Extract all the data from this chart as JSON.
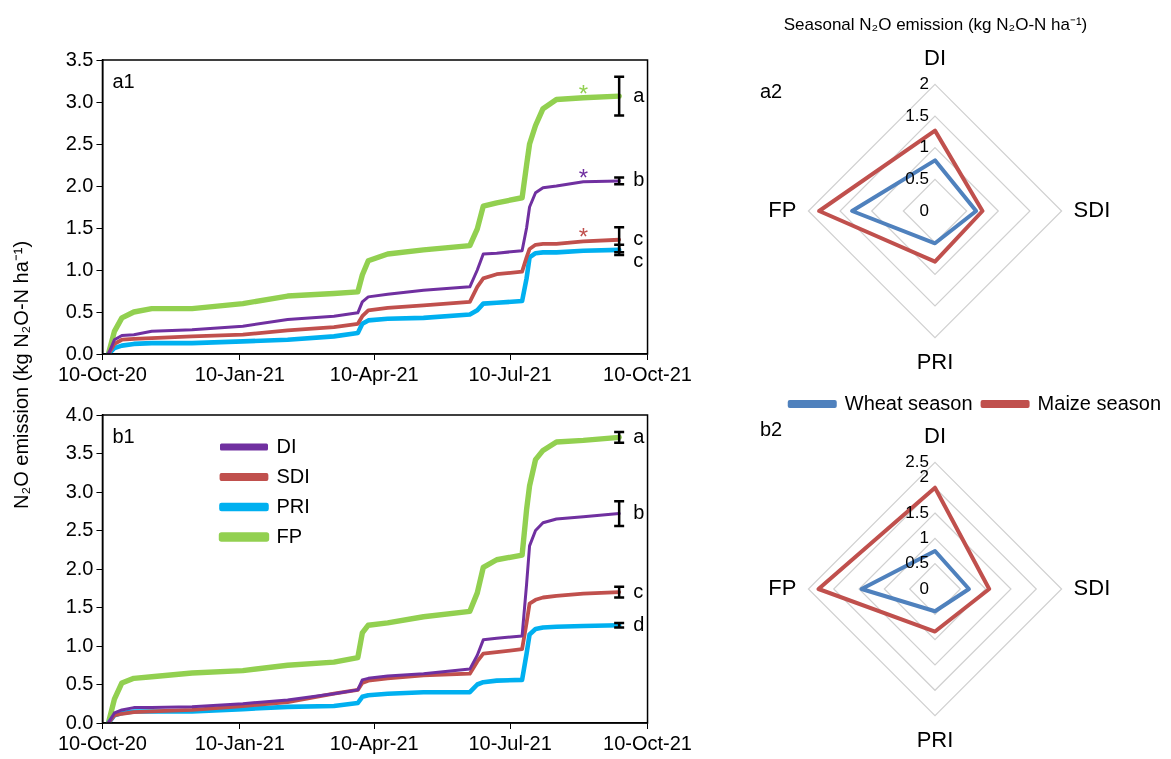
{
  "chart_data": [
    {
      "type": "line",
      "ylabel": "N₂O emission (kg N₂O-N ha⁻¹)",
      "x": [
        "2020-10-14",
        "2020-10-18",
        "2020-10-23",
        "2020-10-31",
        "2020-11-12",
        "2020-12-09",
        "2021-01-12",
        "2021-02-11",
        "2021-03-14",
        "2021-03-30",
        "2021-04-02",
        "2021-04-06",
        "2021-04-19",
        "2021-05-13",
        "2021-06-13",
        "2021-06-18",
        "2021-06-22",
        "2021-07-01",
        "2021-07-18",
        "2021-07-21",
        "2021-07-23",
        "2021-07-27",
        "2021-08-01",
        "2021-08-10",
        "2021-08-28",
        "2021-09-21"
      ],
      "series": [
        {
          "color": "#7030a0",
          "values": [
            0,
            0.17,
            0.22,
            0.23,
            0.27,
            0.29,
            0.33,
            0.41,
            0.45,
            0.49,
            0.62,
            0.68,
            0.71,
            0.76,
            0.8,
            1.0,
            1.19,
            1.2,
            1.23,
            1.5,
            1.75,
            1.92,
            1.98,
            2.0,
            2.05,
            2.06
          ],
          "errors": [
            null,
            null,
            null,
            null,
            null,
            null,
            null,
            null,
            null,
            null,
            null,
            null,
            null,
            null,
            null,
            null,
            null,
            null,
            null,
            null,
            null,
            null,
            null,
            null,
            null,
            0.04
          ]
        },
        {
          "color": "#c0504d",
          "values": [
            0,
            0.12,
            0.17,
            0.18,
            0.19,
            0.21,
            0.23,
            0.28,
            0.32,
            0.36,
            0.45,
            0.52,
            0.55,
            0.58,
            0.62,
            0.8,
            0.9,
            0.95,
            0.98,
            1.15,
            1.25,
            1.3,
            1.31,
            1.31,
            1.34,
            1.36
          ],
          "errors": [
            null,
            null,
            null,
            null,
            null,
            null,
            null,
            null,
            null,
            null,
            null,
            null,
            null,
            null,
            null,
            null,
            null,
            null,
            null,
            null,
            null,
            null,
            null,
            null,
            null,
            0.15
          ]
        },
        {
          "color": "#00b0f0",
          "values": [
            0,
            0.07,
            0.1,
            0.12,
            0.13,
            0.13,
            0.15,
            0.17,
            0.21,
            0.25,
            0.36,
            0.4,
            0.42,
            0.43,
            0.47,
            0.52,
            0.6,
            0.61,
            0.63,
            0.9,
            1.15,
            1.2,
            1.21,
            1.21,
            1.23,
            1.24
          ],
          "errors": [
            null,
            null,
            null,
            null,
            null,
            null,
            null,
            null,
            null,
            null,
            null,
            null,
            null,
            null,
            null,
            null,
            null,
            null,
            null,
            null,
            null,
            null,
            null,
            null,
            null,
            0.06
          ]
        },
        {
          "color": "#92d050",
          "values": [
            0,
            0.27,
            0.43,
            0.5,
            0.54,
            0.54,
            0.6,
            0.69,
            0.72,
            0.74,
            0.94,
            1.11,
            1.19,
            1.24,
            1.29,
            1.49,
            1.76,
            1.8,
            1.86,
            2.25,
            2.5,
            2.72,
            2.92,
            3.03,
            3.05,
            3.07
          ],
          "errors": [
            null,
            null,
            null,
            null,
            null,
            null,
            null,
            null,
            null,
            null,
            null,
            null,
            null,
            null,
            null,
            null,
            null,
            null,
            null,
            null,
            null,
            null,
            null,
            null,
            null,
            0.23
          ]
        }
      ],
      "xlim": [
        "2020-10-10",
        "2021-10-10"
      ],
      "xticks": [
        {
          "value": "2020-10-10",
          "label": "10-Oct-20"
        },
        {
          "value": "2021-01-10",
          "label": "10-Jan-21"
        },
        {
          "value": "2021-04-10",
          "label": "10-Apr-21"
        },
        {
          "value": "2021-07-10",
          "label": "10-Jul-21"
        },
        {
          "value": "2021-10-10",
          "label": "10-Oct-21"
        }
      ],
      "ylim": [
        0,
        3.5
      ],
      "yticks": [
        {
          "value": 0,
          "label": "0.0"
        },
        0.5,
        {
          "value": 1,
          "label": "1.0"
        },
        1.5,
        {
          "value": 2,
          "label": "2.0"
        },
        2.5,
        {
          "value": 3,
          "label": "3.0"
        },
        3.5
      ],
      "annotations": [
        "a1",
        {
          "text": "*",
          "x": "2021-08-28",
          "y": 3.05
        },
        {
          "text": "*",
          "x": "2021-08-28",
          "y": 2.05
        },
        {
          "text": "*",
          "x": "2021-08-28",
          "y": 1.34
        },
        {
          "text": "a",
          "x": "2021-09-21",
          "y": 3.07
        },
        {
          "text": "b",
          "x": "2021-09-21",
          "y": 2.06
        },
        {
          "text": "c",
          "x": "2021-09-21",
          "y": 1.36
        },
        {
          "text": "c",
          "x": "2021-09-21",
          "y": 1.24
        }
      ]
    },
    {
      "type": "radar",
      "title": "Seasonal N₂O emission (kg N₂O-N ha⁻¹)",
      "categories": [
        "DI",
        "SDI",
        "PRI",
        "FP"
      ],
      "series": [
        {
          "color": "#4f81bd",
          "values": [
            0.8,
            0.65,
            0.51,
            1.31
          ]
        },
        {
          "color": "#c0504d",
          "values": [
            1.27,
            0.75,
            0.8,
            1.83
          ]
        }
      ],
      "ylim": [
        0,
        2
      ],
      "yticks": [
        0,
        0.5,
        1,
        1.5,
        2
      ],
      "grid": true,
      "annotations": [
        "a2"
      ]
    },
    {
      "type": "line",
      "x": [
        "2020-10-14",
        "2020-10-18",
        "2020-10-23",
        "2020-10-31",
        "2020-11-12",
        "2020-12-09",
        "2021-01-12",
        "2021-02-11",
        "2021-03-14",
        "2021-03-30",
        "2021-04-02",
        "2021-04-06",
        "2021-04-19",
        "2021-05-13",
        "2021-06-13",
        "2021-06-18",
        "2021-06-22",
        "2021-07-01",
        "2021-07-18",
        "2021-07-21",
        "2021-07-23",
        "2021-07-27",
        "2021-08-01",
        "2021-08-10",
        "2021-08-28",
        "2021-09-21"
      ],
      "series": [
        {
          "name": "DI",
          "color": "#7030a0",
          "values": [
            0,
            0.13,
            0.17,
            0.2,
            0.2,
            0.21,
            0.25,
            0.3,
            0.38,
            0.43,
            0.56,
            0.58,
            0.61,
            0.64,
            0.7,
            0.88,
            1.08,
            1.1,
            1.13,
            1.8,
            2.3,
            2.5,
            2.6,
            2.65,
            2.68,
            2.72
          ],
          "errors": [
            null,
            null,
            null,
            null,
            null,
            null,
            null,
            null,
            null,
            null,
            null,
            null,
            null,
            null,
            null,
            null,
            null,
            null,
            null,
            null,
            null,
            null,
            null,
            null,
            null,
            0.16
          ]
        },
        {
          "name": "SDI",
          "color": "#c0504d",
          "values": [
            0,
            0.1,
            0.12,
            0.14,
            0.15,
            0.17,
            0.22,
            0.27,
            0.38,
            0.43,
            0.52,
            0.55,
            0.58,
            0.62,
            0.64,
            0.8,
            0.9,
            0.92,
            0.96,
            1.3,
            1.55,
            1.6,
            1.63,
            1.65,
            1.68,
            1.7
          ],
          "errors": [
            null,
            null,
            null,
            null,
            null,
            null,
            null,
            null,
            null,
            null,
            null,
            null,
            null,
            null,
            null,
            null,
            null,
            null,
            null,
            null,
            null,
            null,
            null,
            null,
            null,
            0.07
          ]
        },
        {
          "name": "PRI",
          "color": "#00b0f0",
          "values": [
            0,
            0.1,
            0.13,
            0.15,
            0.15,
            0.15,
            0.18,
            0.21,
            0.22,
            0.26,
            0.34,
            0.36,
            0.38,
            0.4,
            0.4,
            0.5,
            0.53,
            0.55,
            0.56,
            0.9,
            1.15,
            1.22,
            1.24,
            1.25,
            1.26,
            1.27
          ],
          "errors": [
            null,
            null,
            null,
            null,
            null,
            null,
            null,
            null,
            null,
            null,
            null,
            null,
            null,
            null,
            null,
            null,
            null,
            null,
            null,
            null,
            null,
            null,
            null,
            null,
            null,
            0.03
          ]
        },
        {
          "name": "FP",
          "color": "#92d050",
          "values": [
            0,
            0.31,
            0.52,
            0.58,
            0.6,
            0.65,
            0.68,
            0.75,
            0.79,
            0.85,
            1.17,
            1.27,
            1.3,
            1.38,
            1.45,
            1.69,
            2.02,
            2.12,
            2.18,
            2.77,
            3.08,
            3.42,
            3.54,
            3.65,
            3.67,
            3.71
          ],
          "errors": [
            null,
            null,
            null,
            null,
            null,
            null,
            null,
            null,
            null,
            null,
            null,
            null,
            null,
            null,
            null,
            null,
            null,
            null,
            null,
            null,
            null,
            null,
            null,
            null,
            null,
            0.07
          ]
        }
      ],
      "xlim": [
        "2020-10-10",
        "2021-10-10"
      ],
      "xticks": [
        {
          "value": "2020-10-10",
          "label": "10-Oct-20"
        },
        {
          "value": "2021-01-10",
          "label": "10-Jan-21"
        },
        {
          "value": "2021-04-10",
          "label": "10-Apr-21"
        },
        {
          "value": "2021-07-10",
          "label": "10-Jul-21"
        },
        {
          "value": "2021-10-10",
          "label": "10-Oct-21"
        }
      ],
      "ylim": [
        0,
        4
      ],
      "yticks": [
        {
          "value": 0,
          "label": "0.0"
        },
        0.5,
        {
          "value": 1,
          "label": "1.0"
        },
        1.5,
        {
          "value": 2,
          "label": "2.0"
        },
        2.5,
        {
          "value": 3,
          "label": "3.0"
        },
        3.5,
        {
          "value": 4,
          "label": "4.0"
        }
      ],
      "legend": "top left",
      "annotations": [
        "b1",
        {
          "text": "a",
          "x": "2021-09-21",
          "y": 3.71
        },
        {
          "text": "b",
          "x": "2021-09-21",
          "y": 2.72
        },
        {
          "text": "c",
          "x": "2021-09-21",
          "y": 1.7
        },
        {
          "text": "d",
          "x": "2021-09-21",
          "y": 1.27
        }
      ]
    },
    {
      "type": "radar",
      "categories": [
        "DI",
        "SDI",
        "PRI",
        "FP"
      ],
      "series": [
        {
          "name": "Wheat season",
          "color": "#4f81bd",
          "values": [
            0.75,
            0.67,
            0.44,
            1.45
          ]
        },
        {
          "name": "Maize season",
          "color": "#c0504d",
          "values": [
            2.0,
            1.07,
            0.84,
            2.3
          ]
        }
      ],
      "ylim": [
        0,
        2.5
      ],
      "yticks": [
        0,
        0.5,
        1,
        1.5,
        2,
        2.5
      ],
      "grid": true,
      "legend": "top right",
      "annotations": [
        "b2"
      ]
    }
  ]
}
